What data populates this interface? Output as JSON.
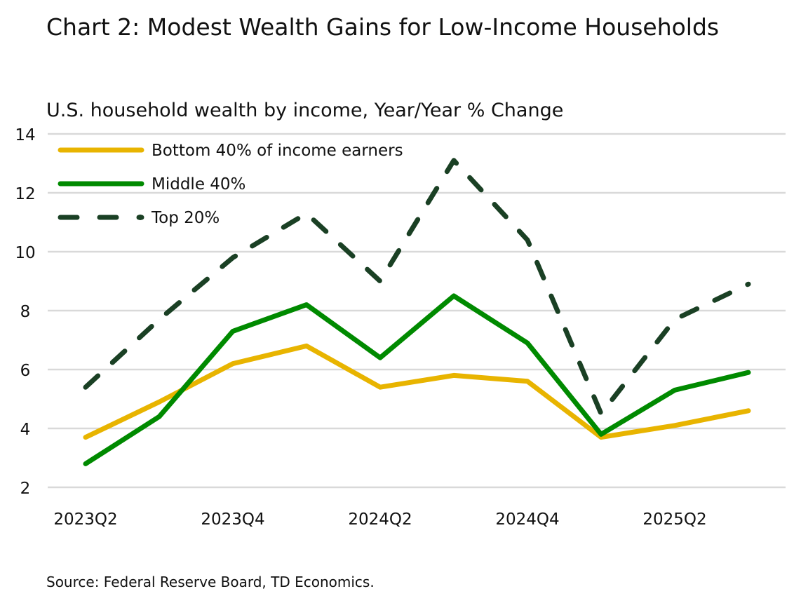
{
  "chart_data": {
    "type": "line",
    "title": "Chart 2: Modest Wealth Gains for Low-Income Households",
    "subtitle": "U.S. household wealth by income, Year/Year % Change",
    "source": "Source: Federal Reserve Board, TD Economics.",
    "x": [
      "2023Q2",
      "2023Q3",
      "2023Q4",
      "2024Q1",
      "2024Q2",
      "2024Q3",
      "2024Q4",
      "2025Q1",
      "2025Q2",
      "2025Q3"
    ],
    "x_tick_labels": [
      "2023Q2",
      "2023Q4",
      "2024Q2",
      "2024Q4",
      "2025Q2"
    ],
    "y_ticks": [
      2,
      4,
      6,
      8,
      10,
      12,
      14
    ],
    "ylim": [
      2,
      14
    ],
    "grid": "horizontal",
    "legend_placement": "top-left",
    "series": [
      {
        "name": "Bottom 40% of income earners",
        "color": "#E8B400",
        "style": "solid",
        "values": [
          3.7,
          4.9,
          6.2,
          6.8,
          5.4,
          5.8,
          5.6,
          3.7,
          4.1,
          4.6
        ]
      },
      {
        "name": "Middle 40%",
        "color": "#008A00",
        "style": "solid",
        "values": [
          2.8,
          4.4,
          7.3,
          8.2,
          6.4,
          8.5,
          6.9,
          3.8,
          5.3,
          5.9
        ]
      },
      {
        "name": "Top 20%",
        "color": "#1A4024",
        "style": "dashed",
        "values": [
          5.4,
          7.7,
          9.8,
          11.3,
          9.0,
          13.1,
          10.4,
          4.5,
          7.7,
          8.9
        ]
      }
    ]
  }
}
